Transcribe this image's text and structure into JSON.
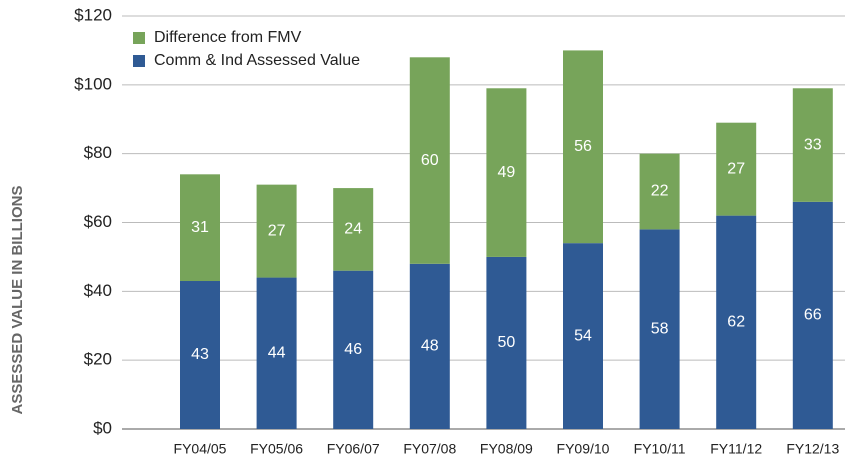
{
  "chart_data": {
    "type": "stacked_bar",
    "y_label": "ASSESSED VALUE IN BILLIONS",
    "categories": [
      "FY04/05",
      "FY05/06",
      "FY06/07",
      "FY07/08",
      "FY08/09",
      "FY09/10",
      "FY10/11",
      "FY11/12",
      "FY12/13"
    ],
    "series": [
      {
        "name": "Comm & Ind Assessed Value",
        "color": "#2f5a94",
        "values": [
          43,
          44,
          46,
          48,
          50,
          54,
          58,
          62,
          66
        ]
      },
      {
        "name": "Difference from FMV",
        "color": "#77a45a",
        "values": [
          31,
          27,
          24,
          60,
          49,
          56,
          22,
          27,
          33
        ]
      }
    ],
    "ylim": [
      0,
      120
    ],
    "yticks": [
      {
        "value": 0,
        "label": "$0"
      },
      {
        "value": 20,
        "label": "$20"
      },
      {
        "value": 40,
        "label": "$40"
      },
      {
        "value": 60,
        "label": "$60"
      },
      {
        "value": 80,
        "label": "$80"
      },
      {
        "value": 100,
        "label": "$100"
      },
      {
        "value": 120,
        "label": "$120"
      }
    ],
    "grid": true,
    "legend": "top-left"
  }
}
